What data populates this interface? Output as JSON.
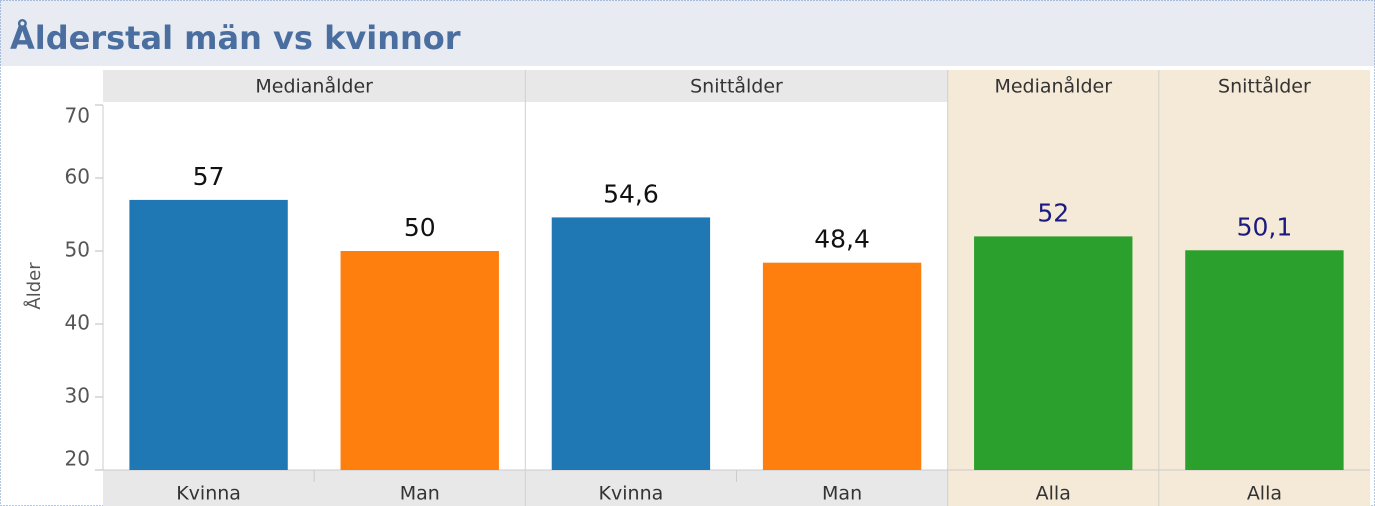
{
  "chart_data": {
    "type": "bar",
    "title": "Ålderstal män vs kvinnor",
    "y_label": "Ålder",
    "ylim": [
      20,
      70
    ],
    "yticks": [
      20,
      30,
      40,
      50,
      60,
      70
    ],
    "panels": [
      {
        "header": "Medianålder",
        "background": "#ffffff",
        "label_color": "#111111",
        "categories": [
          "Kvinna",
          "Man"
        ],
        "values": [
          57,
          50
        ],
        "value_labels": [
          "57",
          "50"
        ],
        "colors": [
          "#1f77b4",
          "#ff7f0e"
        ]
      },
      {
        "header": "Snittålder",
        "background": "#ffffff",
        "label_color": "#111111",
        "categories": [
          "Kvinna",
          "Man"
        ],
        "values": [
          54.6,
          48.4
        ],
        "value_labels": [
          "54,6",
          "48,4"
        ],
        "colors": [
          "#1f77b4",
          "#ff7f0e"
        ]
      },
      {
        "header": "Medianålder",
        "background": "#f5e9d8",
        "label_color": "#1a1a80",
        "categories": [
          "Alla"
        ],
        "values": [
          52
        ],
        "value_labels": [
          "52"
        ],
        "colors": [
          "#2ca02c"
        ]
      },
      {
        "header": "Snittålder",
        "background": "#f5e9d8",
        "label_color": "#1a1a80",
        "categories": [
          "Alla"
        ],
        "values": [
          50.1
        ],
        "value_labels": [
          "50,1"
        ],
        "colors": [
          "#2ca02c"
        ]
      }
    ]
  }
}
